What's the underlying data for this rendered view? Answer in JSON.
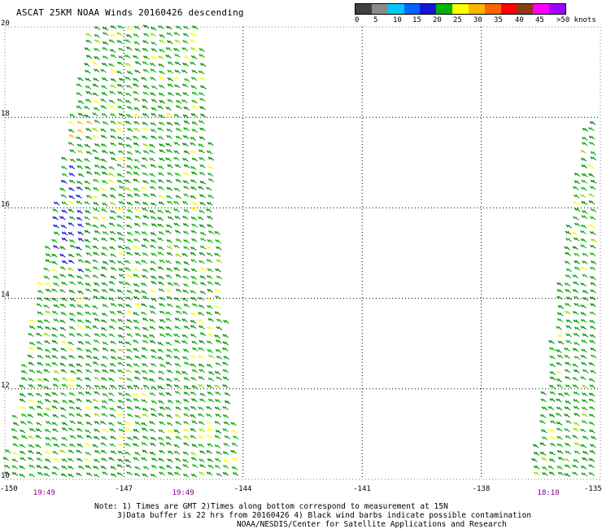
{
  "title": "ASCAT 25KM NOAA Winds 20160426 descending",
  "legend": {
    "colors": [
      "#404040",
      "#8a8a8a",
      "#00c8ff",
      "#0064ff",
      "#1414dc",
      "#00b400",
      "#ffff00",
      "#ffb400",
      "#ff6400",
      "#ff0000",
      "#8c3c14",
      "#ff00ff",
      "#a000ff"
    ],
    "labels": [
      "0",
      "5",
      "10",
      "15",
      "20",
      "25",
      "30",
      "35",
      "40",
      "45",
      ">50 knots"
    ]
  },
  "map": {
    "lat_ticks": [
      "20",
      "18",
      "16",
      "14",
      "12",
      "10"
    ],
    "lon_ticks": [
      "-150",
      "-147",
      "-144",
      "-141",
      "-138",
      "-135"
    ],
    "lat_range": [
      10,
      20
    ],
    "lon_range": [
      -150,
      -135
    ],
    "times": [
      {
        "lon": -149,
        "label": "19:49"
      },
      {
        "lon": -145.5,
        "label": "19:49"
      },
      {
        "lon": -136.3,
        "label": "18:10"
      }
    ],
    "swaths": [
      {
        "name": "west-swath",
        "corners": [
          [
            -147.8,
            20
          ],
          [
            -145.0,
            20
          ],
          [
            -144.0,
            10
          ],
          [
            -150,
            10
          ]
        ]
      },
      {
        "name": "east-swath",
        "corners": [
          [
            -135.3,
            18.0
          ],
          [
            -135,
            18.0
          ],
          [
            -135,
            10
          ],
          [
            -136.7,
            10
          ]
        ]
      }
    ]
  },
  "notes": {
    "line1": "Note: 1) Times are GMT 2)Times along bottom correspond to measurement at 15N",
    "line2": "3)Data buffer is 22 hrs from 20160426 4) Black wind barbs indicate possible contamination",
    "line3": "NOAA/NESDIS/Center for Satellite Applications and Research"
  }
}
